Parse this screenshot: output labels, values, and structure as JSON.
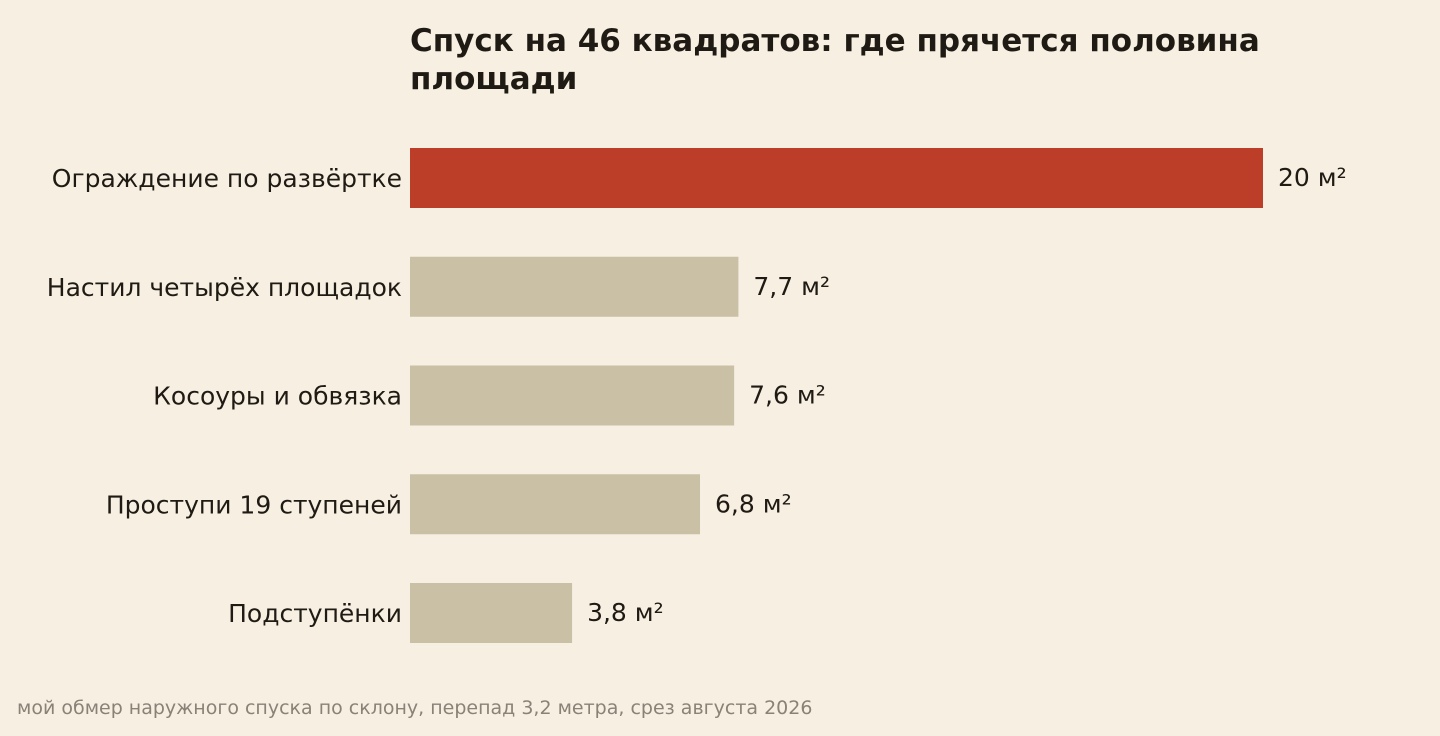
{
  "chart_data": {
    "type": "bar",
    "orientation": "horizontal",
    "title_lines": [
      "Спуск на 46 квадратов: где прячется половина",
      "площади"
    ],
    "categories": [
      "Ограждение по развёртке",
      "Настил четырёх площадок",
      "Косоуры и обвязка",
      "Проступи 19 ступеней",
      "Подступёнки"
    ],
    "values": [
      20,
      7.7,
      7.6,
      6.8,
      3.8
    ],
    "value_labels": [
      "20 м²",
      "7,7 м²",
      "7,6 м²",
      "6,8 м²",
      "3,8 м²"
    ],
    "unit": "м²",
    "xlim": [
      0,
      20
    ],
    "grid": false,
    "legend": "none",
    "highlight_index": 0,
    "colors": {
      "highlight": "#bc3d28",
      "bar": "#c9c0a6",
      "background": "#f6efe2",
      "text": "#1f1b14",
      "note": "#8a8276"
    }
  },
  "footnote": "мой обмер наружного спуска по склону, перепад 3,2 метра, срез августа 2026"
}
